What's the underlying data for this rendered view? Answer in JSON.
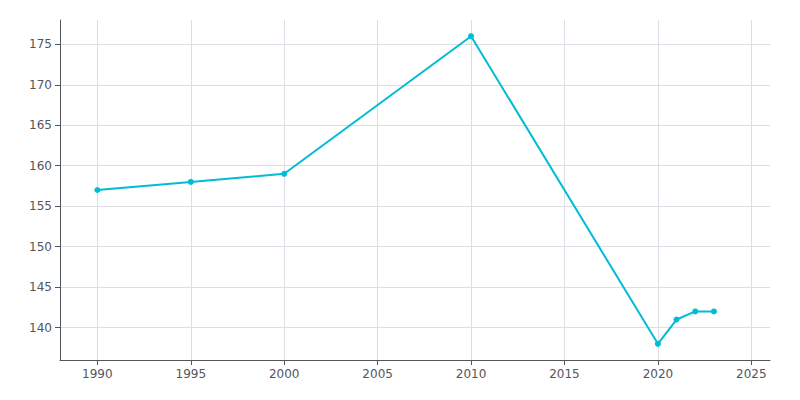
{
  "chart_data": {
    "type": "line",
    "x": [
      1990,
      1995,
      2000,
      2010,
      2020,
      2021,
      2022,
      2023
    ],
    "values": [
      157,
      158,
      159,
      176,
      138,
      141,
      142,
      142
    ],
    "color": "#00BCD4",
    "marker": "circle",
    "xlim": [
      1988,
      2026
    ],
    "xticks": [
      1990,
      1995,
      2000,
      2005,
      2010,
      2015,
      2020,
      2025
    ],
    "ylim": [
      136,
      178
    ],
    "yticks": [
      140,
      145,
      150,
      155,
      160,
      165,
      170,
      175
    ],
    "grid": true
  }
}
